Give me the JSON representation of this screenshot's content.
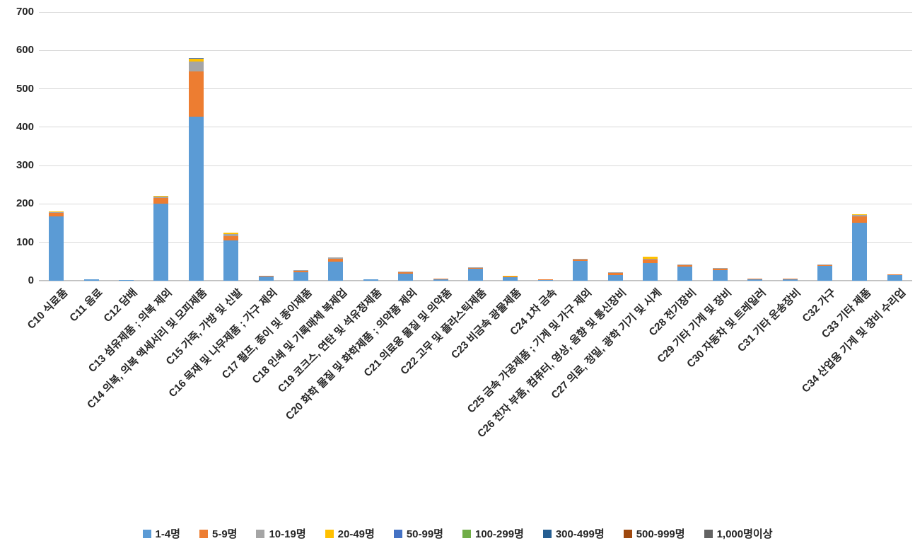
{
  "chart_data": {
    "type": "bar",
    "stacked": true,
    "title": "",
    "xlabel": "",
    "ylabel": "",
    "ylim": [
      0,
      700
    ],
    "yticks": [
      0,
      100,
      200,
      300,
      400,
      500,
      600,
      700
    ],
    "grid": true,
    "legend_position": "bottom",
    "categories": [
      "C10 식료품",
      "C11 음료",
      "C12 담배",
      "C13 섬유제품 ; 의복 제외",
      "C14 의복, 의복 액세서리 및 모피제품",
      "C15 가죽, 가방 및 신발",
      "C16 목재 및 나무제품 ; 가구 제외",
      "C17 펄프, 종이 및 종이제품",
      "C18 인쇄 및 기록매체 복제업",
      "C19 코크스, 연탄 및 석유정제품",
      "C20 화학 물질 및 화학제품 ; 의약품 제외",
      "C21 의료용 물질 및 의약품",
      "C22 고무 및 플라스틱제품",
      "C23 비금속 광물제품",
      "C24 1차 금속",
      "C25 금속 가공제품 ; 기계 및 가구 제외",
      "C26 전자 부품, 컴퓨터, 영상, 음향 및 통신장비",
      "C27 의료, 정밀, 광학 기기 및 시계",
      "C28 전기장비",
      "C29 기타 기계 및 장비",
      "C30 자동차 및 트레일러",
      "C31 기타 운송장비",
      "C32 가구",
      "C33 기타 제품",
      "C34 산업용 기계 및 장비 수리업"
    ],
    "series": [
      {
        "name": "1-4명",
        "color": "#5B9BD5",
        "values": [
          168,
          3,
          1,
          200,
          428,
          105,
          12,
          22,
          50,
          3,
          19,
          4,
          31,
          9,
          2,
          51,
          15,
          47,
          37,
          27,
          4,
          4,
          38,
          152,
          14
        ]
      },
      {
        "name": "5-9명",
        "color": "#ED7D31",
        "values": [
          8,
          0,
          0,
          15,
          118,
          12,
          1,
          4,
          8,
          0,
          4,
          1,
          3,
          2,
          2,
          5,
          5,
          8,
          4,
          4,
          1,
          1,
          2,
          15,
          1
        ]
      },
      {
        "name": "10-19명",
        "color": "#A5A5A5",
        "values": [
          2,
          0,
          0,
          4,
          25,
          4,
          0,
          1,
          3,
          0,
          1,
          0,
          1,
          0,
          0,
          1,
          1,
          3,
          1,
          1,
          0,
          0,
          1,
          5,
          0
        ]
      },
      {
        "name": "20-49명",
        "color": "#FFC000",
        "values": [
          1,
          0,
          0,
          2,
          8,
          4,
          0,
          0,
          0,
          0,
          0,
          0,
          0,
          1,
          0,
          0,
          0,
          4,
          0,
          0,
          0,
          0,
          0,
          2,
          0
        ]
      },
      {
        "name": "50-99명",
        "color": "#4472C4",
        "values": [
          0,
          0,
          0,
          0,
          1,
          0,
          0,
          0,
          0,
          0,
          0,
          0,
          0,
          0,
          0,
          0,
          0,
          0,
          0,
          0,
          0,
          0,
          0,
          0,
          0
        ]
      },
      {
        "name": "100-299명",
        "color": "#70AD47",
        "values": [
          0,
          0,
          0,
          0,
          0,
          0,
          0,
          0,
          0,
          0,
          0,
          0,
          0,
          0,
          0,
          0,
          0,
          0,
          0,
          0,
          0,
          0,
          0,
          0,
          0
        ]
      },
      {
        "name": "300-499명",
        "color": "#255E91",
        "values": [
          0,
          0,
          0,
          0,
          0,
          0,
          0,
          0,
          0,
          0,
          0,
          0,
          0,
          0,
          0,
          0,
          0,
          0,
          0,
          0,
          0,
          0,
          0,
          0,
          0
        ]
      },
      {
        "name": "500-999명",
        "color": "#9E480E",
        "values": [
          0,
          0,
          0,
          0,
          0,
          0,
          0,
          0,
          0,
          0,
          0,
          0,
          0,
          0,
          0,
          0,
          0,
          0,
          0,
          0,
          0,
          0,
          0,
          0,
          0
        ]
      },
      {
        "name": "1,000명이상",
        "color": "#636363",
        "values": [
          0,
          0,
          0,
          0,
          0,
          0,
          0,
          0,
          0,
          0,
          0,
          0,
          0,
          0,
          0,
          0,
          0,
          0,
          0,
          0,
          0,
          0,
          0,
          0,
          0
        ]
      }
    ]
  }
}
